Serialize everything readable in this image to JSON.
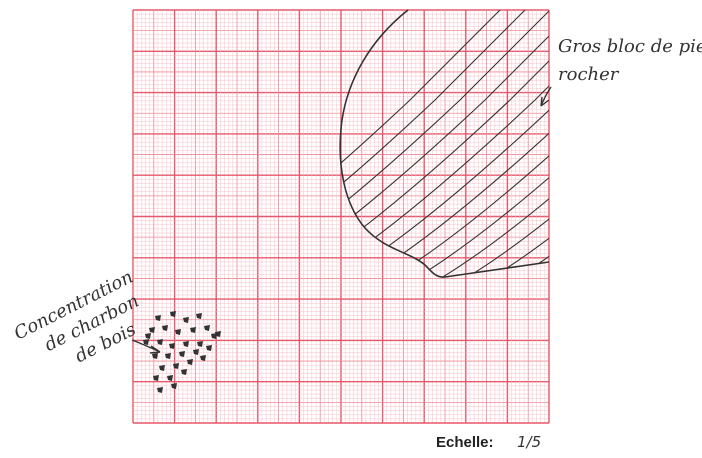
{
  "annotations": {
    "rock_label": [
      "Gros bloc de pierre",
      "rocher"
    ],
    "charcoal_label": [
      "Concentration",
      "de charbon",
      "de bois"
    ]
  },
  "scale": {
    "label": "Echelle:",
    "value": "1/5"
  }
}
